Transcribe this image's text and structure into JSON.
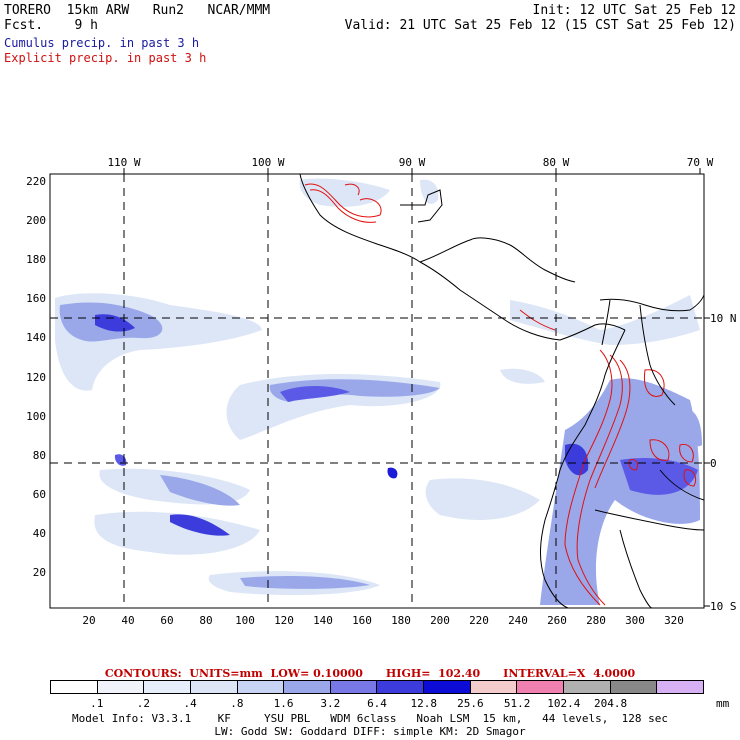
{
  "header": {
    "left1": "TORERO  15km ARW   Run2   NCAR/MMM",
    "left2": "Fcst.    9 h",
    "right1": "Init: 12 UTC Sat 25 Feb 12",
    "right2": "Valid: 21 UTC Sat 25 Feb 12 (15 CST Sat 25 Feb 12)",
    "cumulus": "Cumulus precip. in past 3 h",
    "explicit": "Explicit precip. in past 3 h",
    "cumulus_color": "#1a1aa0",
    "explicit_color": "#d01010"
  },
  "map": {
    "top_lon_labels": [
      "110 W",
      "100 W",
      "90 W",
      "80 W",
      "70 W"
    ],
    "right_lat_labels": [
      "10 N",
      "0",
      "10 S"
    ],
    "y_ticks": [
      "220",
      "200",
      "180",
      "160",
      "140",
      "120",
      "100",
      "80",
      "60",
      "40",
      "20"
    ],
    "x_ticks": [
      "20",
      "40",
      "60",
      "80",
      "100",
      "120",
      "140",
      "160",
      "180",
      "200",
      "220",
      "240",
      "260",
      "280",
      "300",
      "320"
    ],
    "precip_colors": {
      "light": "#dde6f7",
      "mid": "#9aa8ea",
      "strong": "#5a5ae6",
      "heavy": "#1c1cd8",
      "contour": "#e01010"
    }
  },
  "contours_line": "CONTOURS:  UNITS=mm  LOW= 0.10000      HIGH=  102.40      INTERVAL=X  4.0000",
  "colorbar": {
    "colors": [
      "#ffffff",
      "#f0f4fa",
      "#e6eefb",
      "#dde6f7",
      "#c8d4f3",
      "#9aa8ea",
      "#7878e6",
      "#3c3cdc",
      "#0c0cd6",
      "#f5cccc",
      "#f080b0",
      "#b0b0b0",
      "#888888",
      "#d8b0f4"
    ],
    "labels": [
      ".1",
      ".2",
      ".4",
      ".8",
      "1.6",
      "3.2",
      "6.4",
      "12.8",
      "25.6",
      "51.2",
      "102.4",
      "204.8"
    ],
    "units": "mm"
  },
  "footer": {
    "line1": "Model Info: V3.3.1    KF     YSU PBL   WDM 6class   Noah LSM  15 km,   44 levels,  128 sec",
    "line2": "LW: Godd SW: Goddard DIFF: simple KM: 2D Smagor"
  }
}
